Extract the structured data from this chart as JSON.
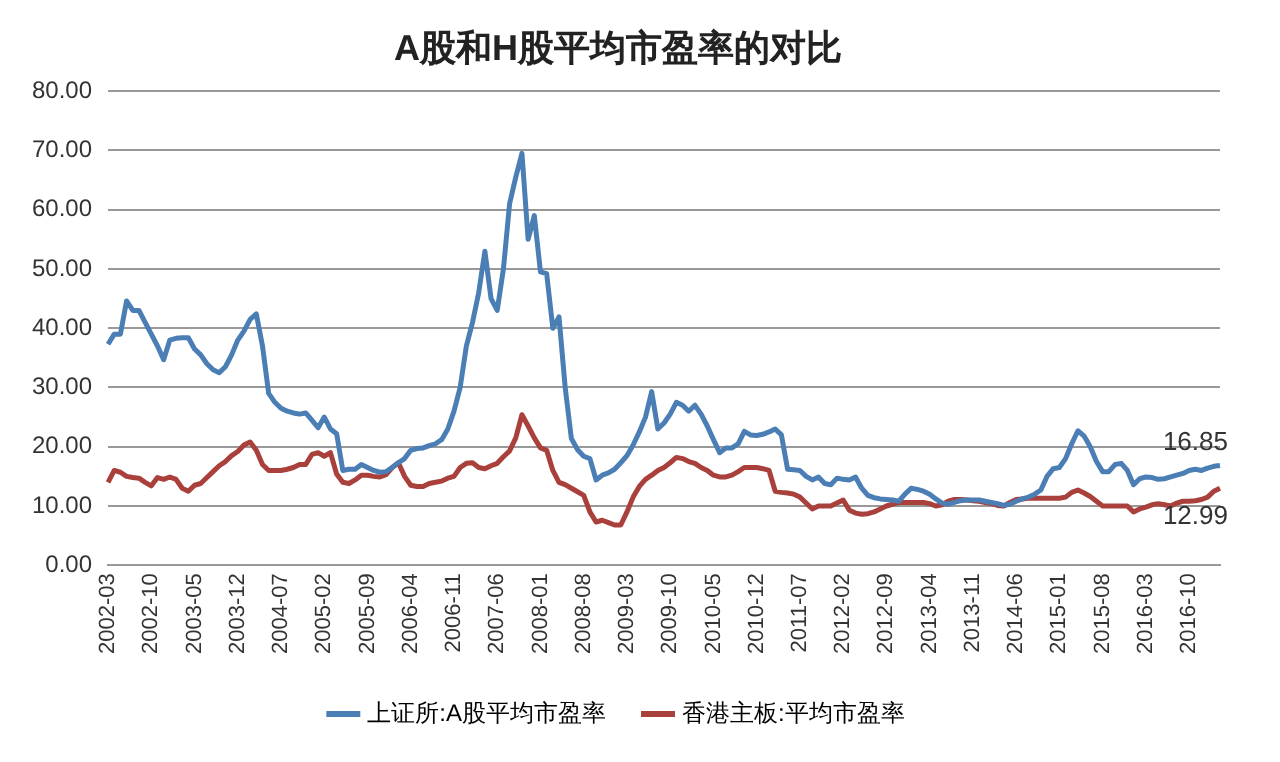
{
  "chart_data": {
    "type": "line",
    "title": "A股和H股平均市盈率的对比",
    "categories": [
      "2002-03",
      null,
      null,
      null,
      null,
      null,
      null,
      "2002-10",
      null,
      null,
      null,
      null,
      null,
      null,
      "2003-05",
      null,
      null,
      null,
      null,
      null,
      null,
      "2003-12",
      null,
      null,
      null,
      null,
      null,
      null,
      "2004-07",
      null,
      null,
      null,
      null,
      null,
      null,
      "2005-02",
      null,
      null,
      null,
      null,
      null,
      null,
      "2005-09",
      null,
      null,
      null,
      null,
      null,
      null,
      "2006-04",
      null,
      null,
      null,
      null,
      null,
      null,
      "2006-11",
      null,
      null,
      null,
      null,
      null,
      null,
      "2007-06",
      null,
      null,
      null,
      null,
      null,
      null,
      "2008-01",
      null,
      null,
      null,
      null,
      null,
      null,
      "2008-08",
      null,
      null,
      null,
      null,
      null,
      null,
      "2009-03",
      null,
      null,
      null,
      null,
      null,
      null,
      "2009-10",
      null,
      null,
      null,
      null,
      null,
      null,
      "2010-05",
      null,
      null,
      null,
      null,
      null,
      null,
      "2010-12",
      null,
      null,
      null,
      null,
      null,
      null,
      "2011-07",
      null,
      null,
      null,
      null,
      null,
      null,
      "2012-02",
      null,
      null,
      null,
      null,
      null,
      null,
      "2012-09",
      null,
      null,
      null,
      null,
      null,
      null,
      "2013-04",
      null,
      null,
      null,
      null,
      null,
      null,
      "2013-11",
      null,
      null,
      null,
      null,
      null,
      null,
      "2014-06",
      null,
      null,
      null,
      null,
      null,
      null,
      "2015-01",
      null,
      null,
      null,
      null,
      null,
      null,
      "2015-08",
      null,
      null,
      null,
      null,
      null,
      null,
      "2016-03",
      null,
      null,
      null,
      null,
      null,
      null,
      "2016-10",
      null,
      null,
      null,
      null,
      null
    ],
    "series": [
      {
        "name": "上证所:A股平均市盈率",
        "color": "#4a7eb5",
        "values": [
          37.3,
          39,
          39,
          44.6,
          43,
          43,
          41,
          39,
          37,
          34.7,
          38,
          38.3,
          38.4,
          38.4,
          36.5,
          35.5,
          34,
          33,
          32.5,
          33.5,
          35.5,
          38,
          39.5,
          41.5,
          42.4,
          37,
          29,
          27.5,
          26.5,
          26,
          25.7,
          25.5,
          25.7,
          24.5,
          23.2,
          25,
          23,
          22.2,
          16,
          16.2,
          16.2,
          17,
          16.5,
          16,
          15.7,
          15.8,
          16.5,
          17.3,
          18,
          19.4,
          19.7,
          19.8,
          20.2,
          20.5,
          21.2,
          23,
          26,
          30,
          37,
          41,
          46,
          53,
          45,
          43,
          50,
          61,
          65.5,
          69.5,
          55,
          59,
          49.5,
          49.2,
          40,
          41.9,
          30,
          21.4,
          19.5,
          18.4,
          18,
          14.4,
          15.2,
          15.6,
          16.2,
          17.3,
          18.5,
          20.3,
          22.5,
          25,
          29.3,
          23,
          24,
          25.5,
          27.5,
          27,
          26,
          27,
          25.5,
          23.5,
          21.2,
          19,
          19.8,
          19.8,
          20.5,
          22.6,
          22,
          21.9,
          22.1,
          22.5,
          23,
          22,
          16.2,
          16.1,
          16,
          15,
          14.4,
          14.9,
          13.8,
          13.6,
          14.7,
          14.5,
          14.4,
          14.9,
          13,
          11.8,
          11.4,
          11.2,
          11.1,
          11,
          10.8,
          12,
          13,
          12.8,
          12.5,
          12,
          11.2,
          10.5,
          10.3,
          10.6,
          10.9,
          11,
          11,
          11,
          10.8,
          10.6,
          10.4,
          10.1,
          10.3,
          10.8,
          11.2,
          11.5,
          12,
          12.7,
          15,
          16.3,
          16.5,
          18,
          20.5,
          22.7,
          21.8,
          20,
          17.5,
          15.8,
          15.8,
          17,
          17.2,
          16,
          13.6,
          14.6,
          14.9,
          14.8,
          14.5,
          14.6,
          14.9,
          15.2,
          15.5,
          16,
          16.2,
          16,
          16.4,
          16.7,
          16.85
        ]
      },
      {
        "name": "香港主板:平均市盈率",
        "color": "#a9403c",
        "values": [
          14,
          16,
          15.7,
          15,
          14.8,
          14.7,
          14,
          13.4,
          14.8,
          14.5,
          14.9,
          14.5,
          13,
          12.5,
          13.5,
          13.8,
          14.8,
          15.8,
          16.8,
          17.5,
          18.5,
          19.2,
          20.3,
          20.8,
          19.4,
          17,
          16,
          16,
          16,
          16.2,
          16.5,
          17,
          17,
          18.7,
          19,
          18.4,
          19,
          15.4,
          14,
          13.8,
          14.4,
          15.2,
          15.2,
          15,
          14.9,
          15.3,
          16.5,
          17.3,
          15,
          13.5,
          13.3,
          13.3,
          13.8,
          14,
          14.2,
          14.7,
          15,
          16.5,
          17.2,
          17.3,
          16.5,
          16.3,
          16.8,
          17.2,
          18.3,
          19.3,
          21.5,
          25.4,
          23.5,
          21.5,
          19.8,
          19.4,
          16,
          14,
          13.6,
          13,
          12.4,
          11.8,
          9,
          7.3,
          7.6,
          7.2,
          6.8,
          6.8,
          9,
          11.5,
          13.3,
          14.5,
          15.2,
          16,
          16.5,
          17.3,
          18.2,
          18,
          17.5,
          17.2,
          16.5,
          16,
          15.2,
          14.9,
          14.9,
          15.2,
          15.8,
          16.5,
          16.5,
          16.5,
          16.3,
          16,
          12.5,
          12.3,
          12.2,
          12,
          11.5,
          10.5,
          9.5,
          10,
          10,
          10,
          10.5,
          11,
          9.3,
          8.8,
          8.6,
          8.7,
          9,
          9.5,
          10,
          10.3,
          10.6,
          10.6,
          10.6,
          10.6,
          10.6,
          10.4,
          10,
          10.2,
          10.8,
          11.1,
          11.1,
          11,
          10.9,
          10.8,
          10.6,
          10.4,
          10.1,
          10,
          10.6,
          11.1,
          11.2,
          11.3,
          11.3,
          11.3,
          11.3,
          11.3,
          11.3,
          11.5,
          12.3,
          12.7,
          12.2,
          11.6,
          10.8,
          10,
          10,
          10,
          10,
          10,
          9,
          9.5,
          9.8,
          10.2,
          10.4,
          10.2,
          10,
          10.5,
          10.8,
          10.8,
          10.9,
          11.1,
          11.5,
          12.5,
          12.99
        ]
      }
    ],
    "annotations": [
      {
        "text": "16.85",
        "y": 16.85
      },
      {
        "text": "12.99",
        "y": 12.99
      }
    ],
    "ylim": [
      0,
      80
    ],
    "yticks": [
      {
        "value": 0,
        "label": "0.00"
      },
      {
        "value": 10,
        "label": "10.00"
      },
      {
        "value": 20,
        "label": "20.00"
      },
      {
        "value": 30,
        "label": "30.00"
      },
      {
        "value": 40,
        "label": "40.00"
      },
      {
        "value": 50,
        "label": "50.00"
      },
      {
        "value": 60,
        "label": "60.00"
      },
      {
        "value": 70,
        "label": "70.00"
      },
      {
        "value": 80,
        "label": "80.00"
      }
    ],
    "grid": "y",
    "legend": "bottom",
    "marker": "none"
  }
}
